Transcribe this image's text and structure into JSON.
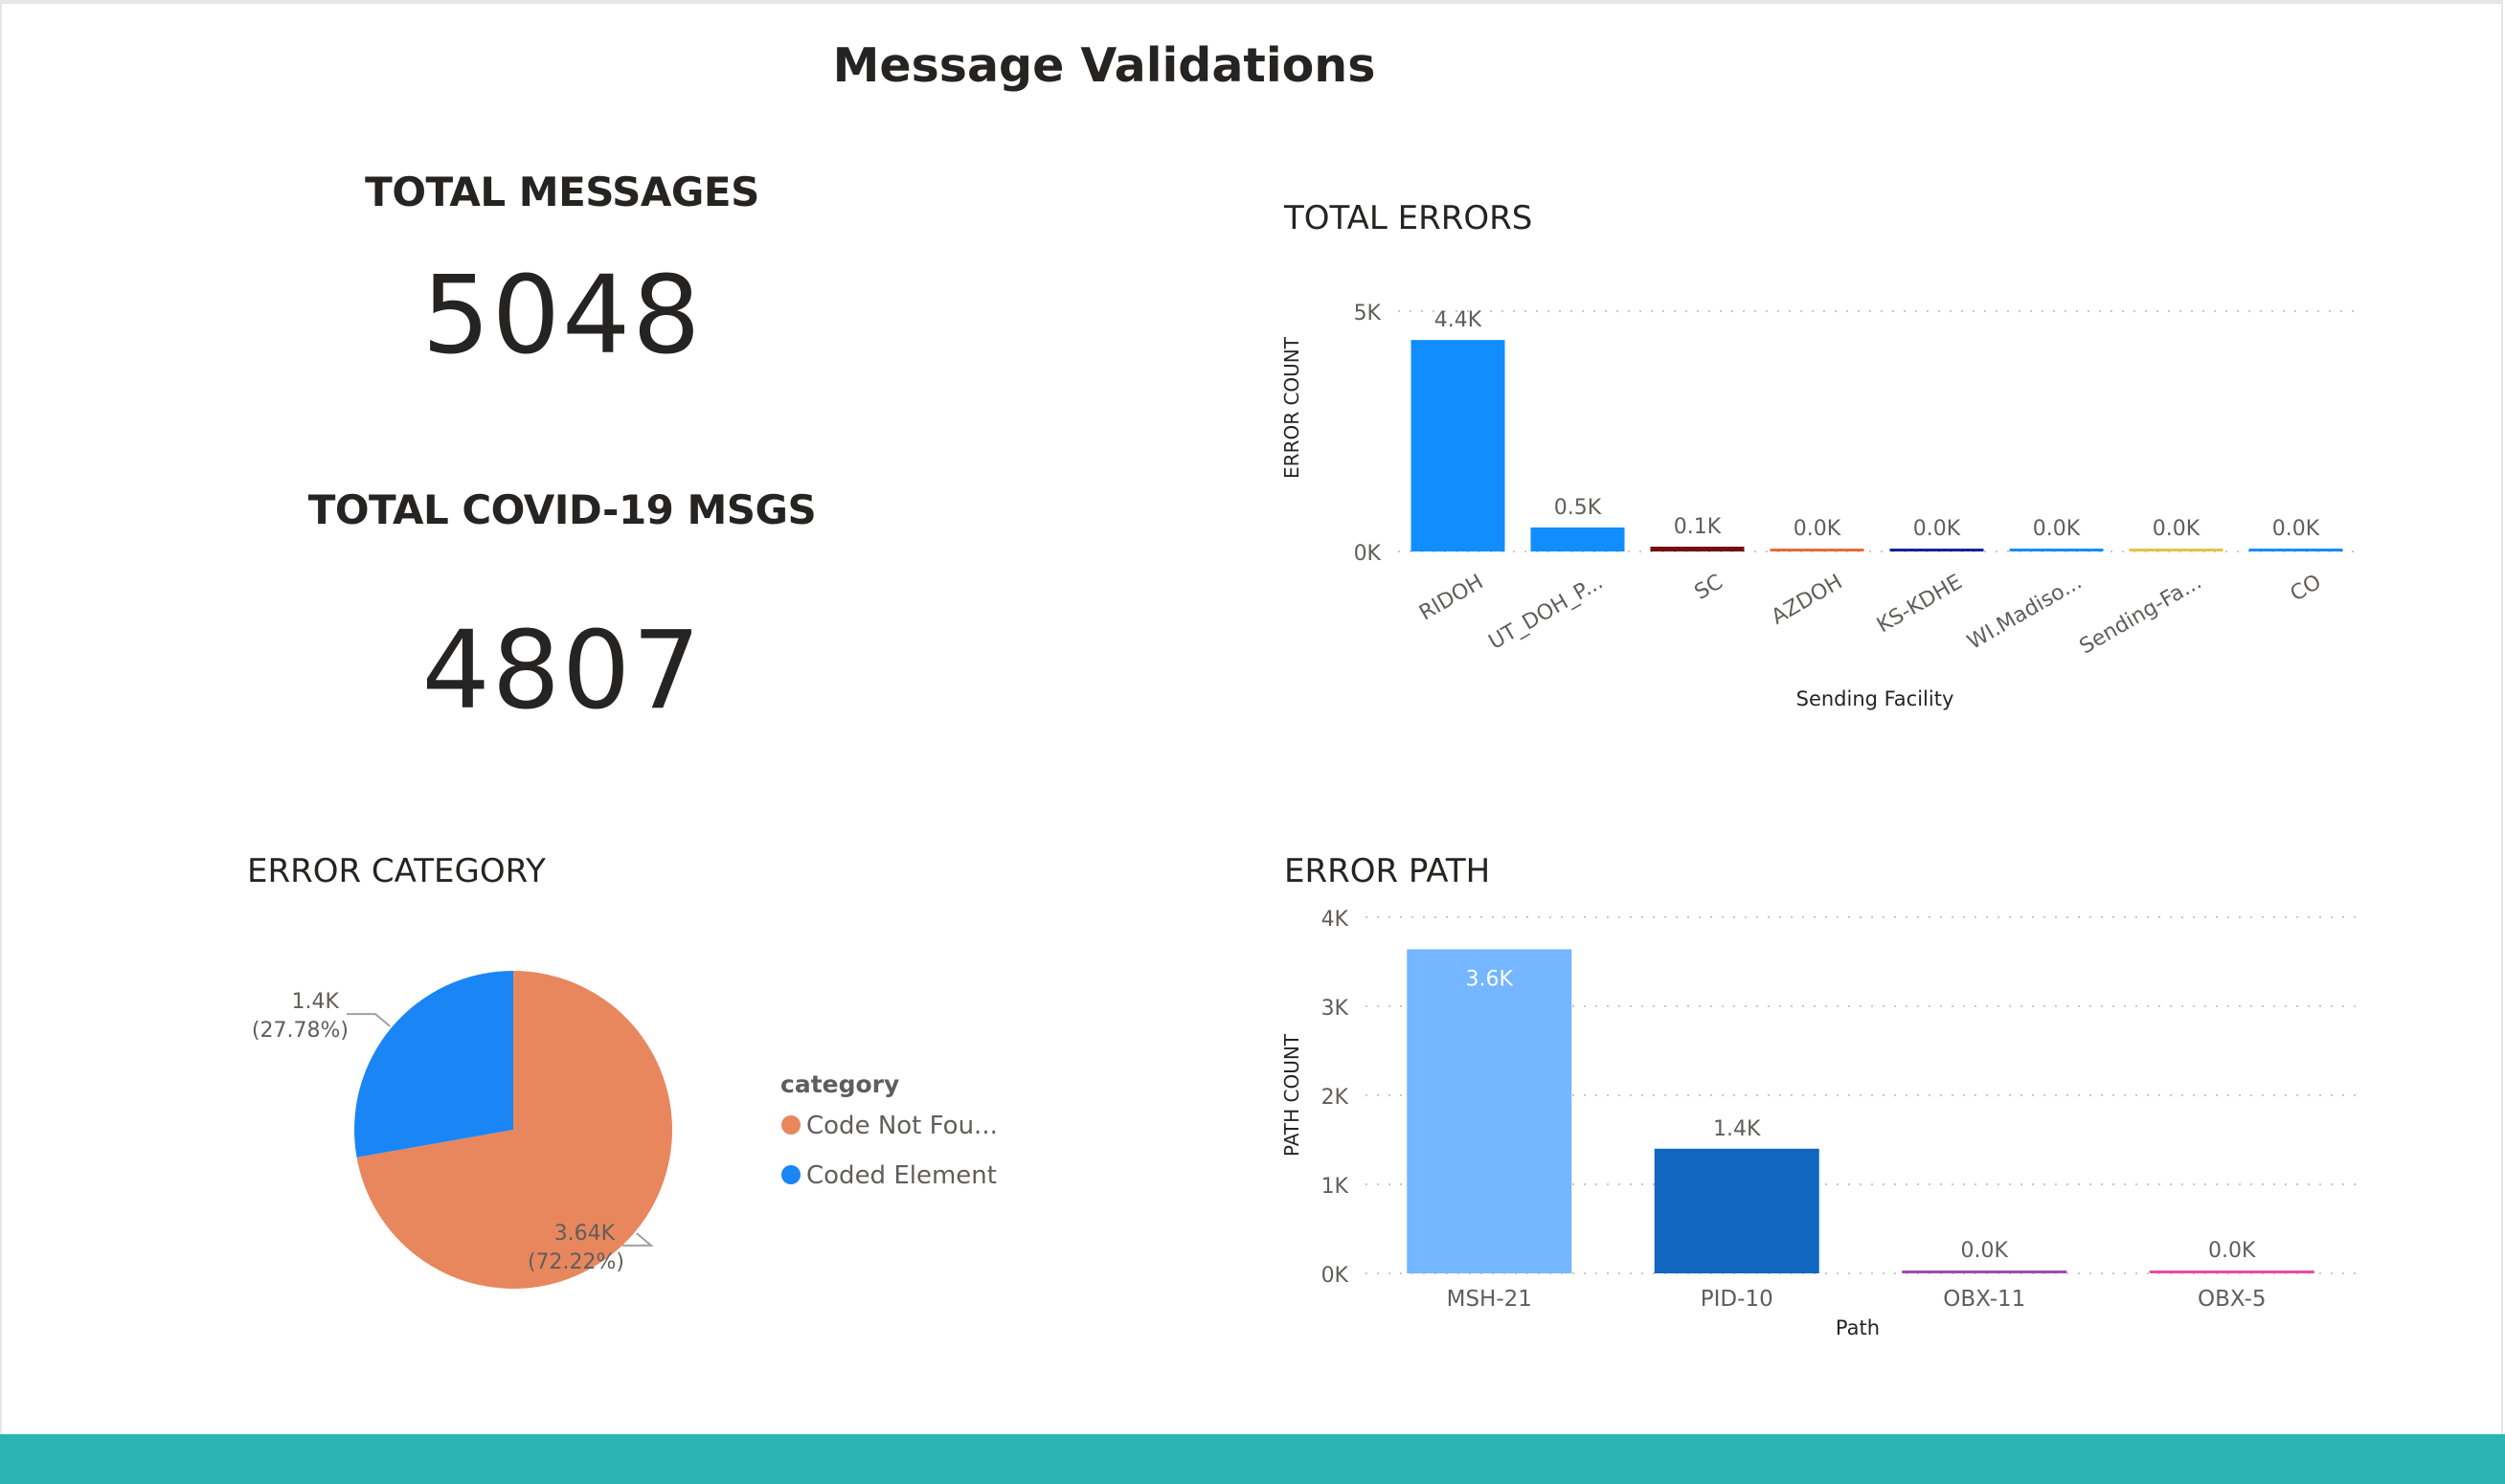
{
  "page": {
    "title": "Message Validations"
  },
  "kpis": {
    "total_messages": {
      "label": "TOTAL MESSAGES",
      "value": "5048"
    },
    "total_covid": {
      "label": "TOTAL COVID-19 MSGS",
      "value": "4807"
    }
  },
  "colors": {
    "footer": "#2bb5b2",
    "accent_blue": "#118dff",
    "accent_orange": "#e8875e"
  },
  "chart_data": [
    {
      "id": "total_errors",
      "type": "bar",
      "title": "TOTAL ERRORS",
      "xlabel": "Sending Facility",
      "ylabel": "ERROR COUNT",
      "ylim": [
        0,
        5000
      ],
      "yticks": [
        0,
        5000
      ],
      "ytick_labels": [
        "0K",
        "5K"
      ],
      "grid": true,
      "categories": [
        "RIDOH",
        "UT_DOH_P...",
        "SC",
        "AZDOH",
        "KS-KDHE",
        "WI.Madiso...",
        "Sending-Fa...",
        "CO"
      ],
      "values": [
        4400,
        500,
        100,
        10,
        10,
        10,
        10,
        10
      ],
      "data_labels": [
        "4.4K",
        "0.5K",
        "0.1K",
        "0.0K",
        "0.0K",
        "0.0K",
        "0.0K",
        "0.0K"
      ],
      "bar_colors": [
        "#118dff",
        "#118dff",
        "#750f0f",
        "#e66c37",
        "#12239e",
        "#118dff",
        "#e3c34a",
        "#118dff"
      ]
    },
    {
      "id": "error_category",
      "type": "pie",
      "title": "ERROR CATEGORY",
      "legend_title": "category",
      "legend_position": "right",
      "slices": [
        {
          "name": "Code Not Fou...",
          "value": 3640,
          "label": "3.64K",
          "percent_label": "(72.22%)",
          "color": "#e8875e"
        },
        {
          "name": "Coded Element",
          "value": 1400,
          "label": "1.4K",
          "percent_label": "(27.78%)",
          "color": "#1a86f5"
        }
      ]
    },
    {
      "id": "error_path",
      "type": "bar",
      "title": "ERROR PATH",
      "xlabel": "Path",
      "ylabel": "PATH COUNT",
      "ylim": [
        0,
        4000
      ],
      "yticks": [
        0,
        1000,
        2000,
        3000,
        4000
      ],
      "ytick_labels": [
        "0K",
        "1K",
        "2K",
        "3K",
        "4K"
      ],
      "grid": true,
      "categories": [
        "MSH-21",
        "PID-10",
        "OBX-11",
        "OBX-5"
      ],
      "values": [
        3640,
        1400,
        20,
        20
      ],
      "data_labels": [
        "3.6K",
        "1.4K",
        "0.0K",
        "0.0K"
      ],
      "bar_colors": [
        "#74b6ff",
        "#1166c0",
        "#9c4bb5",
        "#e64da0"
      ]
    }
  ]
}
